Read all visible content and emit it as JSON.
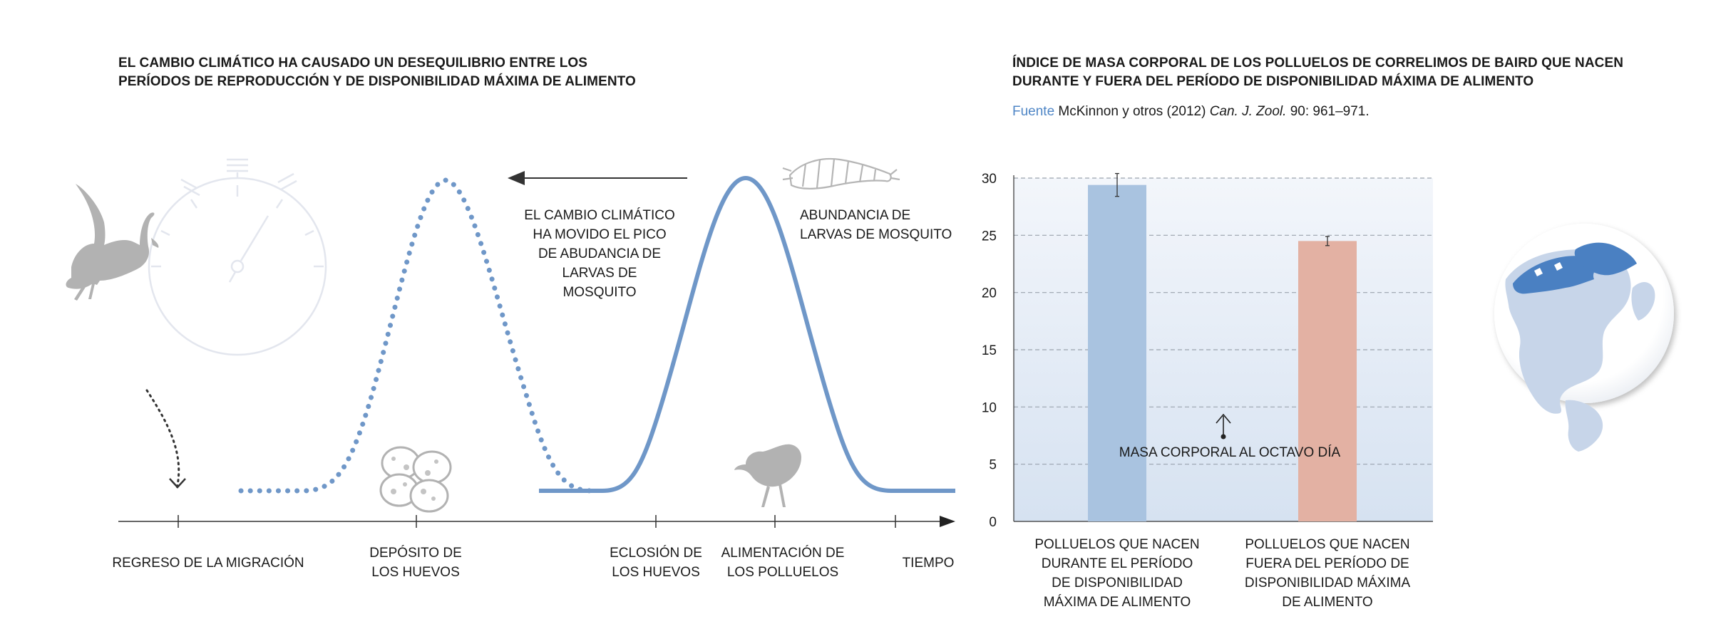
{
  "left_panel": {
    "title_line1": "EL CAMBIO CLIMÁTICO HA CAUSADO UN DESEQUILIBRIO ENTRE LOS",
    "title_line2": "PERÍODOS DE REPRODUCCIÓN Y DE DISPONIBILIDAD MÁXIMA DE ALIMENTO",
    "annotation_shift": [
      "EL CAMBIO CLIMÁTICO",
      "HA MOVIDO EL PICO",
      "DE ABUDANCIA DE",
      "LARVAS DE",
      "MOSQUITO"
    ],
    "annotation_abundance": [
      "ABUNDANCIA DE",
      "LARVAS DE MOSQUITO"
    ],
    "timeline_labels": {
      "migration": "REGRESO DE LA MIGRACIÓN",
      "eggs_laid": [
        "DEPÓSITO DE",
        "LOS HUEVOS"
      ],
      "hatching": [
        "ECLOSIÓN DE",
        "LOS HUEVOS"
      ],
      "feeding": [
        "ALIMENTACIÓN DE",
        "LOS POLLUELOS"
      ],
      "time": "TIEMPO"
    },
    "icons": [
      "stopwatch-icon",
      "sandpiper-icon",
      "eggs-icon",
      "chick-icon",
      "larva-icon"
    ],
    "colors": {
      "curve": "#6f97c8",
      "axis": "#333333",
      "icon": "#b5b5b5"
    }
  },
  "right_panel": {
    "title_line1": "ÍNDICE DE MASA CORPORAL DE LOS POLLUELOS DE CORRELIMOS DE BAIRD QUE NACEN",
    "title_line2": "DURANTE Y FUERA DEL PERÍODO DE DISPONIBILIDAD MÁXIMA DE ALIMENTO",
    "source_label": "Fuente",
    "source_text_a": " McKinnon y otros (2012) ",
    "source_journal": "Can. J. Zool.",
    "source_text_b": " 90: 961–971.",
    "annotation": "MASA CORPORAL AL OCTAVO DÍA",
    "icons": [
      "globe-map-icon",
      "up-arrow-icon"
    ]
  },
  "chart_data": {
    "type": "bar",
    "categories": [
      [
        "POLLUELOS QUE NACEN",
        "DURANTE EL PERÍODO",
        "DE DISPONIBILIDAD",
        "MÁXIMA DE ALIMENTO"
      ],
      [
        "POLLUELOS QUE NACEN",
        "FUERA DEL PERÍODO DE",
        "DISPONIBILIDAD MÁXIMA",
        "DE ALIMENTO"
      ]
    ],
    "values": [
      29.4,
      24.5
    ],
    "error": [
      1.0,
      0.4
    ],
    "colors": [
      "#a9c3e0",
      "#e3b1a3"
    ],
    "ylim": [
      0,
      30
    ],
    "yticks": [
      0,
      5,
      10,
      15,
      20,
      25,
      30
    ],
    "grid": true,
    "title": "",
    "xlabel": "",
    "ylabel": ""
  }
}
